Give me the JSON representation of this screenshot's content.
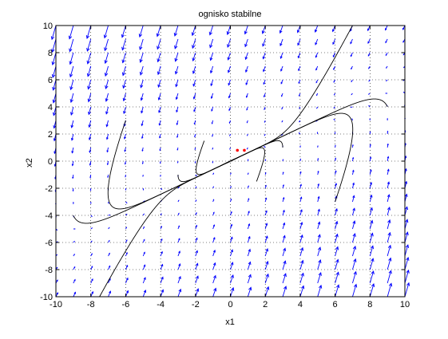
{
  "chart_data": {
    "type": "phase_portrait",
    "title": "ognisko stabilne",
    "xlabel": "x1",
    "ylabel": "x2",
    "xlim": [
      -10,
      10
    ],
    "ylim": [
      -10,
      10
    ],
    "xticks": [
      -10,
      -8,
      -6,
      -4,
      -2,
      0,
      2,
      4,
      6,
      8,
      10
    ],
    "yticks": [
      -10,
      -8,
      -6,
      -4,
      -2,
      0,
      2,
      4,
      6,
      8,
      10
    ],
    "grid": true,
    "grid_style": "dotted",
    "vector_field": {
      "color": "#0000ff",
      "system": {
        "a11": 0.1,
        "a12": -0.3,
        "a21": 0.5,
        "a22": -0.9
      },
      "spacing": 1
    },
    "trajectories": {
      "color": "#000000",
      "start_points": [
        [
          -7.5,
          -10
        ],
        [
          7,
          10
        ],
        [
          -9,
          -4
        ],
        [
          9,
          4
        ],
        [
          -6,
          3
        ],
        [
          6,
          -3
        ],
        [
          -3,
          -1
        ],
        [
          3,
          1
        ],
        [
          -1.5,
          1.5
        ],
        [
          1.5,
          -1.5
        ]
      ]
    },
    "equilibrium_point": [
      0,
      0
    ],
    "markers": [
      {
        "x": 0.8,
        "y": 0.8,
        "color": "#ff0000"
      },
      {
        "x": 0.4,
        "y": 0.8,
        "color": "#ff0000"
      }
    ]
  }
}
